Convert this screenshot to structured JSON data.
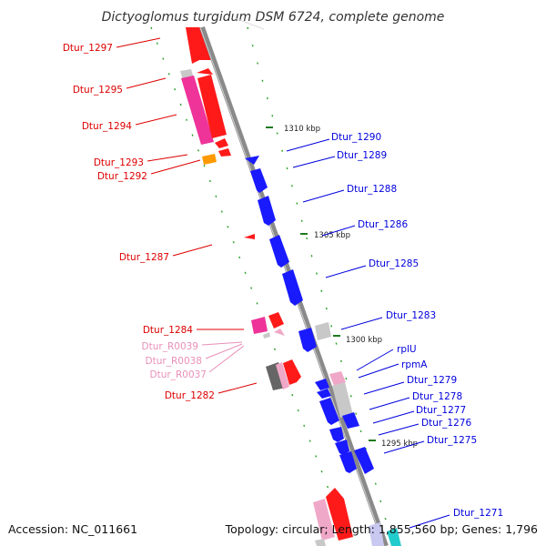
{
  "title": "Dictyoglomus turgidum DSM 6724, complete genome",
  "accession_text": "Accession: NC_011661",
  "topology_text": "Topology: circular; Length: 1,855,560 bp; Genes: 1,796",
  "colors": {
    "backbone": "#8a8a8a",
    "forward_red": "#ff1a1a",
    "reverse_blue": "#1a1aff",
    "magenta": "#ee3399",
    "pink_light": "#f0a8c8",
    "grey_light": "#c8c8c8",
    "grey_dark": "#666666",
    "orange": "#ff9900",
    "cyan": "#22cccc",
    "ruler_green": "#1f7a1f",
    "label_red": "#dd0000",
    "label_blue": "#0000dd",
    "label_pink": "#e890b8"
  },
  "ticks": [
    {
      "label": "1310 kbp"
    },
    {
      "label": "1305 kbp"
    },
    {
      "label": "1300 kbp"
    },
    {
      "label": "1295 kbp"
    }
  ],
  "left_labels": [
    {
      "text": "Dtur_1297",
      "color": "red"
    },
    {
      "text": "Dtur_1295",
      "color": "red"
    },
    {
      "text": "Dtur_1294",
      "color": "red"
    },
    {
      "text": "Dtur_1293",
      "color": "red"
    },
    {
      "text": "Dtur_1292",
      "color": "red"
    },
    {
      "text": "Dtur_1287",
      "color": "red"
    },
    {
      "text": "Dtur_1284",
      "color": "red"
    },
    {
      "text": "Dtur_R0039",
      "color": "pink"
    },
    {
      "text": "Dtur_R0038",
      "color": "pink"
    },
    {
      "text": "Dtur_R0037",
      "color": "pink"
    },
    {
      "text": "Dtur_1282",
      "color": "red"
    }
  ],
  "right_labels": [
    {
      "text": "Dtur_1290",
      "color": "blue"
    },
    {
      "text": "Dtur_1289",
      "color": "blue"
    },
    {
      "text": "Dtur_1288",
      "color": "blue"
    },
    {
      "text": "Dtur_1286",
      "color": "blue"
    },
    {
      "text": "Dtur_1285",
      "color": "blue"
    },
    {
      "text": "Dtur_1283",
      "color": "blue"
    },
    {
      "text": "rplU",
      "color": "blue"
    },
    {
      "text": "rpmA",
      "color": "blue"
    },
    {
      "text": "Dtur_1279",
      "color": "blue"
    },
    {
      "text": "Dtur_1278",
      "color": "blue"
    },
    {
      "text": "Dtur_1277",
      "color": "blue"
    },
    {
      "text": "Dtur_1276",
      "color": "blue"
    },
    {
      "text": "Dtur_1275",
      "color": "blue"
    },
    {
      "text": "Dtur_1271",
      "color": "blue"
    }
  ]
}
